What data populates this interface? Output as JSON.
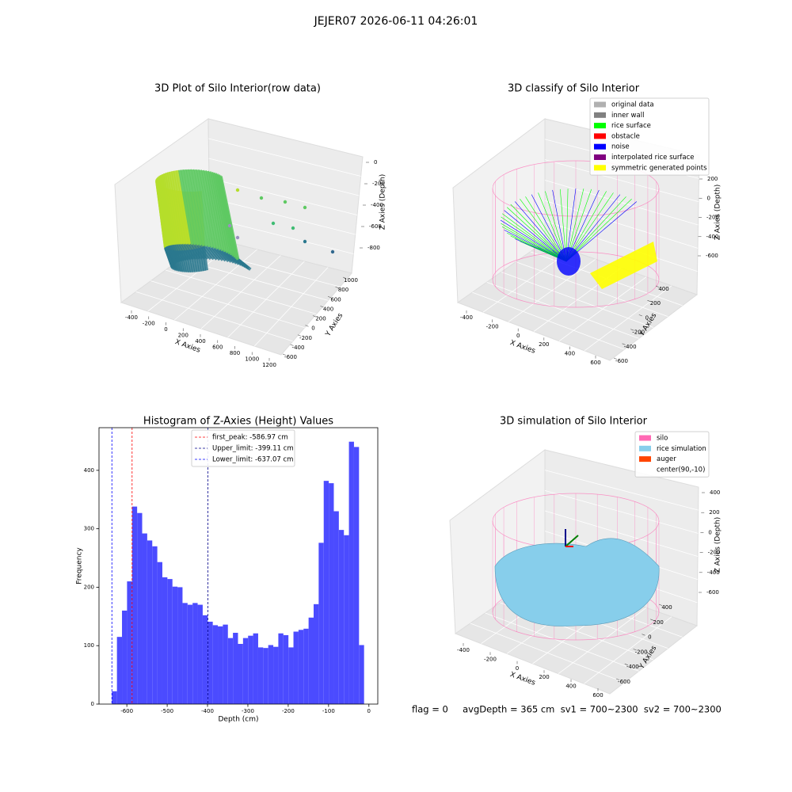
{
  "title": "JEJER07 2026-06-11 04:26:01",
  "footer": "flag = 0     avgDepth = 365 cm  sv1 = 700~2300  sv2 = 700~2300",
  "chart_data": [
    {
      "type": "scatter3d",
      "title": "3D Plot of Silo Interior(row data)",
      "xlabel": "X Axies",
      "ylabel": "Y Axies",
      "zlabel": "Z Axies (Depth)",
      "xticks": [
        -400,
        -200,
        0,
        200,
        400,
        600,
        800,
        1000,
        1200
      ],
      "yticks": [
        -600,
        -400,
        -200,
        0,
        200,
        400,
        600,
        800,
        1000
      ],
      "zticks": [
        0,
        -200,
        -400,
        -600,
        -800
      ]
    },
    {
      "type": "scatter3d",
      "title": "3D classify of Silo Interior",
      "xlabel": "X Axies",
      "ylabel": "Y Axies",
      "zlabel": "Z Axies (Depth)",
      "xticks": [
        -400,
        -200,
        0,
        200,
        400,
        600
      ],
      "yticks": [
        -600,
        -400,
        -200,
        0,
        200,
        400
      ],
      "zticks": [
        200,
        0,
        -200,
        -400,
        -600
      ],
      "legend": [
        {
          "name": "original data",
          "color": "#b0b0b0"
        },
        {
          "name": "inner wall",
          "color": "#808080"
        },
        {
          "name": "rice surface",
          "color": "#00ff00"
        },
        {
          "name": "obstacle",
          "color": "#ff0000"
        },
        {
          "name": "noise",
          "color": "#0000ff"
        },
        {
          "name": "interpolated rice surface",
          "color": "#800080"
        },
        {
          "name": "symmetric generated points",
          "color": "#ffff00"
        }
      ]
    },
    {
      "type": "histogram",
      "title": "Histogram of Z-Axies (Height) Values",
      "xlabel": "Depth (cm)",
      "ylabel": "Frequency",
      "color": "#4b4bff",
      "bins": [
        -637,
        -624.5,
        -612,
        -599.5,
        -587,
        -574.5,
        -562,
        -549.5,
        -537,
        -524.5,
        -512,
        -499.5,
        -487,
        -474.5,
        -462,
        -449.5,
        -437,
        -424.5,
        -412,
        -399.5,
        -387,
        -374.5,
        -362,
        -349.5,
        -337,
        -324.5,
        -312,
        -299.5,
        -287,
        -274.5,
        -262,
        -249.5,
        -237,
        -224.5,
        -212,
        -199.5,
        -187,
        -174.5,
        -162,
        -149.5,
        -137,
        -124.5,
        -112,
        -99.5,
        -87,
        -74.5,
        -62,
        -49.5,
        -37,
        -24.5,
        -12
      ],
      "values": [
        22,
        115,
        160,
        210,
        338,
        327,
        292,
        280,
        270,
        243,
        217,
        214,
        201,
        200,
        173,
        170,
        173,
        170,
        152,
        141,
        135,
        133,
        136,
        113,
        122,
        103,
        113,
        117,
        121,
        97,
        96,
        101,
        98,
        121,
        118,
        97,
        124,
        127,
        129,
        148,
        171,
        276,
        382,
        378,
        330,
        298,
        289,
        449,
        440,
        101
      ],
      "xlim": [
        -669,
        22
      ],
      "ylim": [
        0,
        473
      ],
      "xticks": [
        -600,
        -500,
        -400,
        -300,
        -200,
        -100,
        0
      ],
      "yticks": [
        0,
        100,
        200,
        300,
        400
      ],
      "lines": [
        {
          "name": "first_peak: -586.97 cm",
          "value": -586.97,
          "color": "#ff0000"
        },
        {
          "name": "Upper_limit: -399.11 cm",
          "value": -399.11,
          "color": "#00008b"
        },
        {
          "name": "Lower_limit: -637.07 cm",
          "value": -637.07,
          "color": "#0000ff"
        }
      ],
      "legend_loc": "upper center"
    },
    {
      "type": "surface3d",
      "title": "3D simulation of Silo Interior",
      "xlabel": "X Axies",
      "ylabel": "Y Axies",
      "zlabel": "Z Axies (Depth)",
      "xticks": [
        -400,
        -200,
        0,
        200,
        400,
        600
      ],
      "yticks": [
        -600,
        -400,
        -200,
        0,
        200,
        400
      ],
      "zticks": [
        400,
        200,
        0,
        -200,
        -400,
        -600
      ],
      "legend": [
        {
          "name": "silo",
          "color": "#ff69b4"
        },
        {
          "name": "rice simulation",
          "color": "#87ceeb"
        },
        {
          "name": "auger",
          "color": "#ff4500"
        },
        {
          "name": "center(90,-10)"
        }
      ]
    }
  ]
}
